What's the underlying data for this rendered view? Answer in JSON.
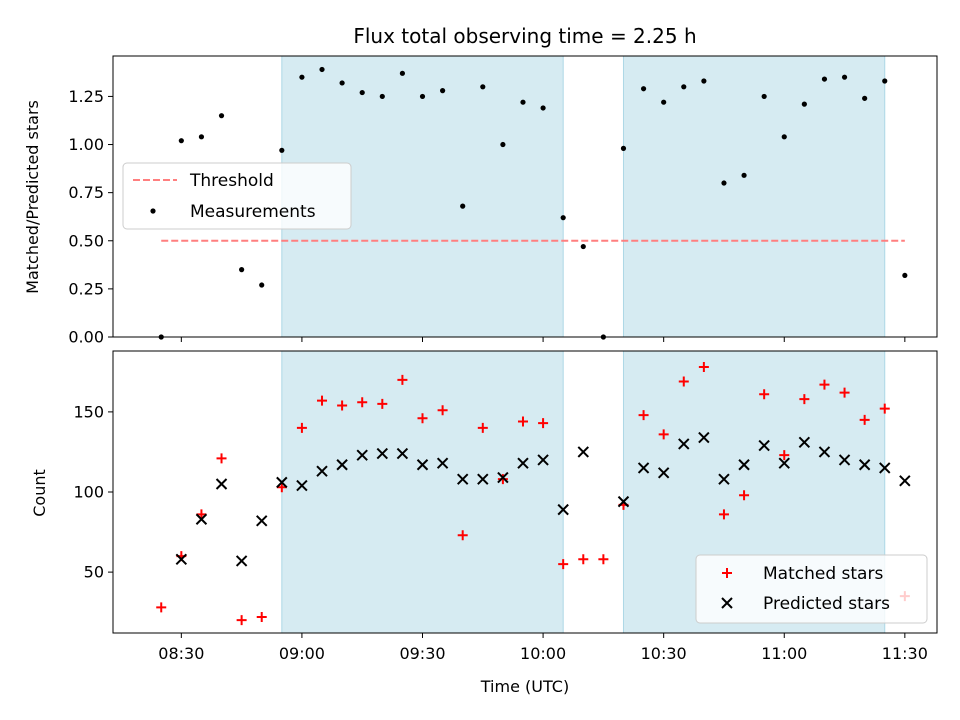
{
  "chart_data": [
    {
      "type": "scatter",
      "title": "Flux total observing time = 2.25 h",
      "ylabel": "Matched/Predicted stars",
      "xlabel": "",
      "xlim": [
        "08:13",
        "11:38"
      ],
      "ylim": [
        0,
        1.46
      ],
      "yticks": [
        "0.00",
        "0.25",
        "0.50",
        "0.75",
        "1.00",
        "1.25"
      ],
      "grid": false,
      "legend": "upper-left",
      "shaded_intervals": [
        [
          "08:55",
          "10:05"
        ],
        [
          "10:20",
          "11:25"
        ]
      ],
      "threshold": {
        "name": "Threshold",
        "value": 0.5,
        "x_range": [
          "08:25",
          "11:30"
        ],
        "color": "#ff7f7f"
      },
      "series": [
        {
          "name": "Measurements",
          "color": "#000000",
          "points": [
            [
              "08:25",
              0.0
            ],
            [
              "08:30",
              1.02
            ],
            [
              "08:35",
              1.04
            ],
            [
              "08:40",
              1.15
            ],
            [
              "08:45",
              0.35
            ],
            [
              "08:50",
              0.27
            ],
            [
              "08:55",
              0.97
            ],
            [
              "09:00",
              1.35
            ],
            [
              "09:05",
              1.39
            ],
            [
              "09:10",
              1.32
            ],
            [
              "09:15",
              1.27
            ],
            [
              "09:20",
              1.25
            ],
            [
              "09:25",
              1.37
            ],
            [
              "09:30",
              1.25
            ],
            [
              "09:35",
              1.28
            ],
            [
              "09:40",
              0.68
            ],
            [
              "09:45",
              1.3
            ],
            [
              "09:50",
              1.0
            ],
            [
              "09:55",
              1.22
            ],
            [
              "10:00",
              1.19
            ],
            [
              "10:05",
              0.62
            ],
            [
              "10:10",
              0.47
            ],
            [
              "10:15",
              0.0
            ],
            [
              "10:20",
              0.98
            ],
            [
              "10:25",
              1.29
            ],
            [
              "10:30",
              1.22
            ],
            [
              "10:35",
              1.3
            ],
            [
              "10:40",
              1.33
            ],
            [
              "10:45",
              0.8
            ],
            [
              "10:50",
              0.84
            ],
            [
              "10:55",
              1.25
            ],
            [
              "11:00",
              1.04
            ],
            [
              "11:05",
              1.21
            ],
            [
              "11:10",
              1.34
            ],
            [
              "11:15",
              1.35
            ],
            [
              "11:20",
              1.24
            ],
            [
              "11:25",
              1.33
            ],
            [
              "11:30",
              0.32
            ]
          ]
        }
      ]
    },
    {
      "type": "scatter",
      "title": "",
      "xlabel": "Time (UTC)",
      "ylabel": "Count",
      "xlim": [
        "08:13",
        "11:38"
      ],
      "ylim": [
        12,
        188
      ],
      "xticks": [
        "08:30",
        "09:00",
        "09:30",
        "10:00",
        "10:30",
        "11:00",
        "11:30"
      ],
      "yticks": [
        "50",
        "100",
        "150"
      ],
      "grid": false,
      "legend": "lower-right",
      "shaded_intervals": [
        [
          "08:55",
          "10:05"
        ],
        [
          "10:20",
          "11:25"
        ]
      ],
      "series": [
        {
          "name": "Matched stars",
          "marker": "plus",
          "color": "#ff0000",
          "points": [
            [
              "08:25",
              28
            ],
            [
              "08:30",
              60
            ],
            [
              "08:35",
              86
            ],
            [
              "08:40",
              121
            ],
            [
              "08:45",
              20
            ],
            [
              "08:50",
              22
            ],
            [
              "08:55",
              103
            ],
            [
              "09:00",
              140
            ],
            [
              "09:05",
              157
            ],
            [
              "09:10",
              154
            ],
            [
              "09:15",
              156
            ],
            [
              "09:20",
              155
            ],
            [
              "09:25",
              170
            ],
            [
              "09:30",
              146
            ],
            [
              "09:35",
              151
            ],
            [
              "09:40",
              73
            ],
            [
              "09:45",
              140
            ],
            [
              "09:50",
              108
            ],
            [
              "09:55",
              144
            ],
            [
              "10:00",
              143
            ],
            [
              "10:05",
              55
            ],
            [
              "10:10",
              58
            ],
            [
              "10:15",
              58
            ],
            [
              "10:20",
              92
            ],
            [
              "10:25",
              148
            ],
            [
              "10:30",
              136
            ],
            [
              "10:35",
              169
            ],
            [
              "10:40",
              178
            ],
            [
              "10:45",
              86
            ],
            [
              "10:50",
              98
            ],
            [
              "10:55",
              161
            ],
            [
              "11:00",
              123
            ],
            [
              "11:05",
              158
            ],
            [
              "11:10",
              167
            ],
            [
              "11:15",
              162
            ],
            [
              "11:20",
              145
            ],
            [
              "11:25",
              152
            ],
            [
              "11:30",
              35
            ]
          ]
        },
        {
          "name": "Predicted stars",
          "marker": "x",
          "color": "#000000",
          "points": [
            [
              "08:30",
              58
            ],
            [
              "08:35",
              83
            ],
            [
              "08:40",
              105
            ],
            [
              "08:45",
              57
            ],
            [
              "08:50",
              82
            ],
            [
              "08:55",
              106
            ],
            [
              "09:00",
              104
            ],
            [
              "09:05",
              113
            ],
            [
              "09:10",
              117
            ],
            [
              "09:15",
              123
            ],
            [
              "09:20",
              124
            ],
            [
              "09:25",
              124
            ],
            [
              "09:30",
              117
            ],
            [
              "09:35",
              118
            ],
            [
              "09:40",
              108
            ],
            [
              "09:45",
              108
            ],
            [
              "09:50",
              109
            ],
            [
              "09:55",
              118
            ],
            [
              "10:00",
              120
            ],
            [
              "10:05",
              89
            ],
            [
              "10:10",
              125
            ],
            [
              "10:20",
              94
            ],
            [
              "10:25",
              115
            ],
            [
              "10:30",
              112
            ],
            [
              "10:35",
              130
            ],
            [
              "10:40",
              134
            ],
            [
              "10:45",
              108
            ],
            [
              "10:50",
              117
            ],
            [
              "10:55",
              129
            ],
            [
              "11:00",
              118
            ],
            [
              "11:05",
              131
            ],
            [
              "11:10",
              125
            ],
            [
              "11:15",
              120
            ],
            [
              "11:20",
              117
            ],
            [
              "11:25",
              115
            ],
            [
              "11:30",
              107
            ]
          ]
        }
      ]
    }
  ]
}
